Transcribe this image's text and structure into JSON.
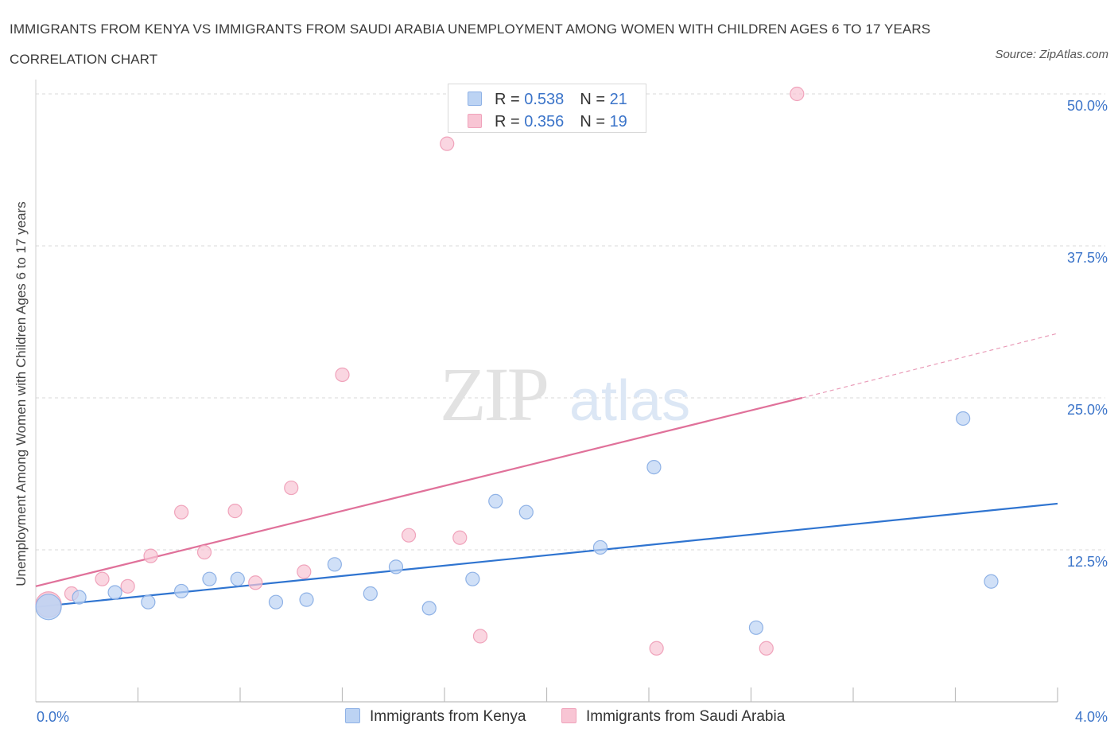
{
  "title": "IMMIGRANTS FROM KENYA VS IMMIGRANTS FROM SAUDI ARABIA UNEMPLOYMENT AMONG WOMEN WITH CHILDREN AGES 6 TO 17 YEARS CORRELATION CHART",
  "source": "Source: ZipAtlas.com",
  "watermark": {
    "zip": "ZIP",
    "atlas": "atlas"
  },
  "legend": {
    "r_label": "R = ",
    "n_label": "N = ",
    "rows": [
      {
        "r": "0.538",
        "n": "21"
      },
      {
        "r": "0.356",
        "n": "19"
      }
    ]
  },
  "colors": {
    "kenya_fill": "#bcd3f3",
    "kenya_stroke": "#8fb2e6",
    "kenya_line": "#2f74d0",
    "saudi_fill": "#f8c5d4",
    "saudi_stroke": "#f0a3bb",
    "saudi_line": "#e0719a",
    "axis_text": "#3b74c9"
  },
  "chart_data": {
    "type": "scatter",
    "title": "IMMIGRANTS FROM KENYA VS IMMIGRANTS FROM SAUDI ARABIA UNEMPLOYMENT AMONG WOMEN WITH CHILDREN AGES 6 TO 17 YEARS CORRELATION CHART",
    "xlabel": "",
    "ylabel": "Unemployment Among Women with Children Ages 6 to 17 years",
    "xlim": [
      0,
      4.0
    ],
    "ylim": [
      0,
      50
    ],
    "x_tick_labels": [
      "0.0%",
      "4.0%"
    ],
    "y_ticks": [
      12.5,
      25.0,
      37.5,
      50.0
    ],
    "y_tick_labels": [
      "12.5%",
      "25.0%",
      "37.5%",
      "50.0%"
    ],
    "grid": true,
    "legend_position": "bottom",
    "series": [
      {
        "name": "Immigrants from Kenya",
        "points": [
          [
            0.05,
            7.8
          ],
          [
            0.17,
            8.6
          ],
          [
            0.31,
            9.0
          ],
          [
            0.44,
            8.2
          ],
          [
            0.57,
            9.1
          ],
          [
            0.68,
            10.1
          ],
          [
            0.79,
            10.1
          ],
          [
            0.94,
            8.2
          ],
          [
            1.06,
            8.4
          ],
          [
            1.17,
            11.3
          ],
          [
            1.31,
            8.9
          ],
          [
            1.41,
            11.1
          ],
          [
            1.54,
            7.7
          ],
          [
            1.71,
            10.1
          ],
          [
            1.8,
            16.5
          ],
          [
            1.92,
            15.6
          ],
          [
            2.21,
            12.7
          ],
          [
            2.42,
            19.3
          ],
          [
            2.82,
            6.1
          ],
          [
            3.63,
            23.3
          ],
          [
            3.74,
            9.9
          ]
        ],
        "trend": {
          "x": [
            0.0,
            4.0
          ],
          "y": [
            7.8,
            16.3
          ]
        }
      },
      {
        "name": "Immigrants from Saudi Arabia",
        "points": [
          [
            0.05,
            8.0
          ],
          [
            0.14,
            8.9
          ],
          [
            0.26,
            10.1
          ],
          [
            0.36,
            9.5
          ],
          [
            0.45,
            12.0
          ],
          [
            0.57,
            15.6
          ],
          [
            0.66,
            12.3
          ],
          [
            0.78,
            15.7
          ],
          [
            0.86,
            9.8
          ],
          [
            1.0,
            17.6
          ],
          [
            1.05,
            10.7
          ],
          [
            1.2,
            26.9
          ],
          [
            1.46,
            13.7
          ],
          [
            1.61,
            45.9
          ],
          [
            1.66,
            13.5
          ],
          [
            1.74,
            5.4
          ],
          [
            2.43,
            4.4
          ],
          [
            2.86,
            4.4
          ],
          [
            2.98,
            50.0
          ]
        ],
        "trend": {
          "x": [
            0.0,
            3.0
          ],
          "y": [
            9.5,
            25.0
          ]
        },
        "trend_extension": {
          "x": [
            3.0,
            4.0
          ],
          "y": [
            25.0,
            30.3
          ]
        }
      }
    ]
  }
}
